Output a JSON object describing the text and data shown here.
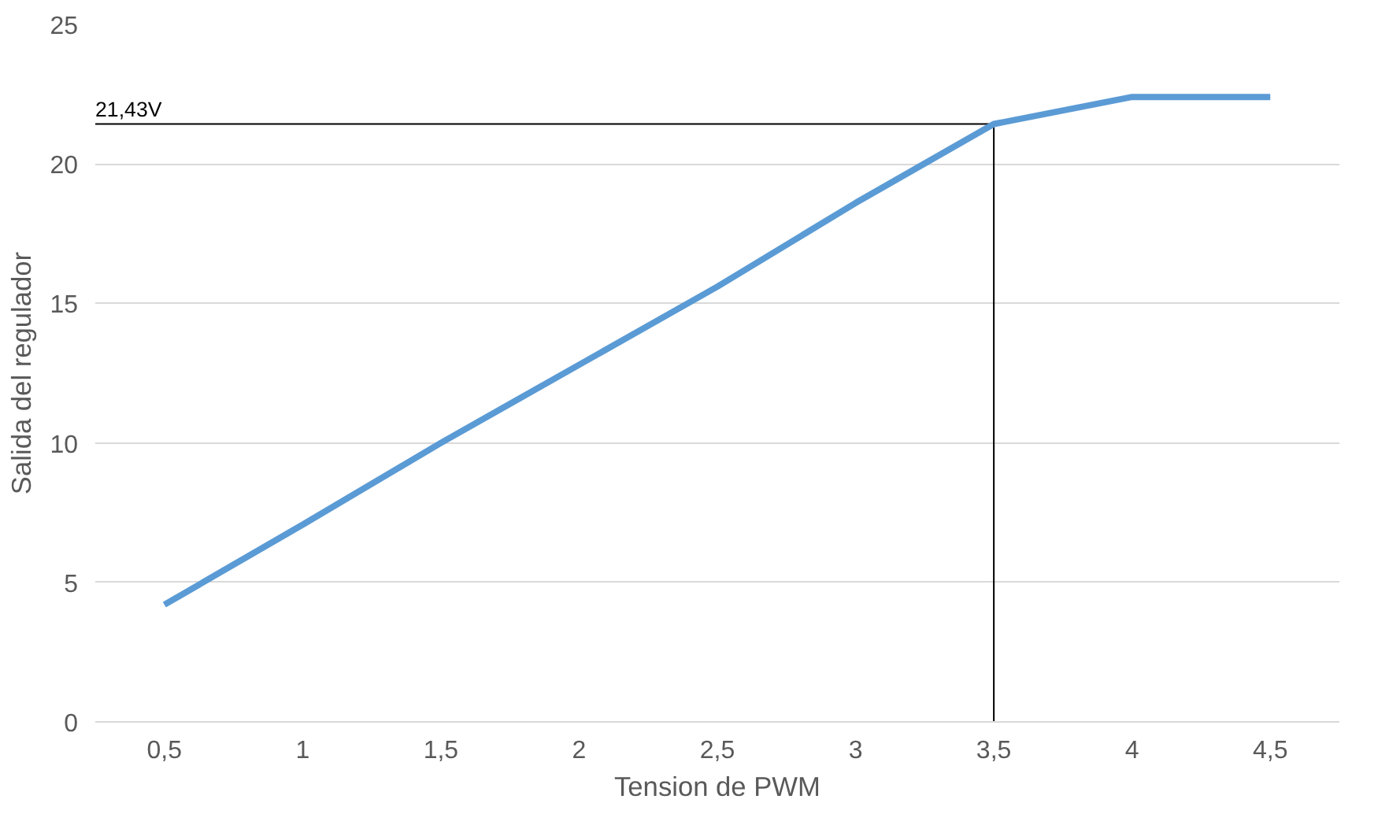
{
  "chart_data": {
    "type": "line",
    "xlabel": "Tension de PWM",
    "ylabel": "Salida del regulador",
    "x": [
      0.5,
      1,
      1.5,
      2,
      2.5,
      3,
      3.5,
      4,
      4.5
    ],
    "series": [
      {
        "color": "#5b9bd5",
        "values": [
          4.2,
          7.07,
          10.0,
          12.8,
          15.6,
          18.6,
          21.43,
          22.4,
          22.4
        ]
      }
    ],
    "xlim": [
      0.25,
      4.75
    ],
    "xticks": [
      {
        "value": 0.5,
        "label": "0,5"
      },
      1,
      {
        "value": 1.5,
        "label": "1,5"
      },
      2,
      {
        "value": 2.5,
        "label": "2,5"
      },
      3,
      {
        "value": 3.5,
        "label": "3,5"
      },
      4,
      {
        "value": 4.5,
        "label": "4,5"
      }
    ],
    "ylim": [
      0,
      25
    ],
    "yticks": [
      0,
      5,
      10,
      15,
      20,
      25
    ],
    "grid": "y",
    "marker": "none",
    "line_style": "solid",
    "ref_lines": [
      {
        "axis": "y",
        "value": 21.43,
        "label": "21,43V",
        "color": "#000000"
      },
      {
        "axis": "x",
        "value": 3.5,
        "color": "#000000"
      }
    ]
  }
}
